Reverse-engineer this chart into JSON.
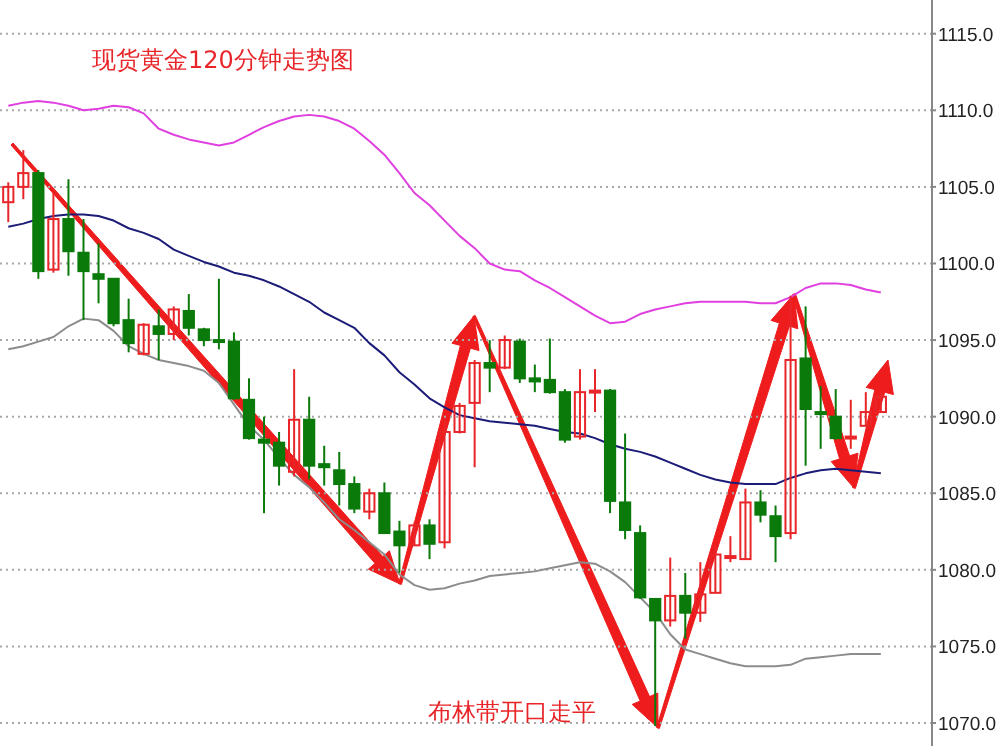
{
  "chart_data": {
    "type": "candlestick",
    "title": "现货黄金120分钟走势图",
    "annotations": [
      "布林带开口走平"
    ],
    "categories": [
      null,
      null,
      null,
      null,
      null,
      null,
      null,
      null,
      null,
      null,
      null,
      null,
      null,
      null,
      null,
      null,
      null,
      null,
      null,
      null,
      null,
      null,
      null,
      null,
      null,
      null,
      null,
      null,
      null,
      null,
      null,
      null,
      null,
      null,
      null,
      null,
      null,
      null,
      null,
      null,
      null,
      null,
      null,
      null,
      null,
      null,
      null,
      null,
      null,
      null,
      null,
      null,
      null,
      null,
      null,
      null,
      null,
      null,
      null
    ],
    "ohlc": [
      [
        1104.0,
        1105.3,
        1102.7,
        1105.0
      ],
      [
        1105.0,
        1107.4,
        1104.2,
        1105.9
      ],
      [
        1105.9,
        1106.1,
        1099.0,
        1099.5
      ],
      [
        1099.6,
        1104.6,
        1099.4,
        1102.9
      ],
      [
        1102.9,
        1105.5,
        1099.2,
        1100.8
      ],
      [
        1100.7,
        1102.9,
        1096.3,
        1099.5
      ],
      [
        1099.3,
        1101.3,
        1097.4,
        1099.0
      ],
      [
        1099.0,
        1099.0,
        1095.9,
        1096.1
      ],
      [
        1096.3,
        1097.7,
        1094.2,
        1094.8
      ],
      [
        1094.1,
        1096.1,
        1094.0,
        1096.0
      ],
      [
        1095.9,
        1097.0,
        1093.7,
        1095.4
      ],
      [
        1095.4,
        1097.2,
        1095.0,
        1097.0
      ],
      [
        1096.9,
        1098.0,
        1095.3,
        1095.8
      ],
      [
        1095.7,
        1095.8,
        1094.6,
        1095.0
      ],
      [
        1095.0,
        1099.0,
        1094.4,
        1094.9
      ],
      [
        1094.9,
        1095.5,
        1091.1,
        1091.2
      ],
      [
        1091.1,
        1092.5,
        1088.5,
        1088.6
      ],
      [
        1088.5,
        1090.0,
        1083.7,
        1088.3
      ],
      [
        1088.3,
        1089.0,
        1085.5,
        1086.8
      ],
      [
        1086.4,
        1093.1,
        1086.1,
        1089.8
      ],
      [
        1089.8,
        1091.3,
        1085.9,
        1086.8
      ],
      [
        1086.9,
        1088.1,
        1085.5,
        1086.7
      ],
      [
        1086.5,
        1087.7,
        1084.2,
        1085.6
      ],
      [
        1085.6,
        1086.1,
        1083.7,
        1084.0
      ],
      [
        1083.8,
        1085.3,
        1083.3,
        1085.0
      ],
      [
        1085.0,
        1085.7,
        1082.4,
        1082.4
      ],
      [
        1082.5,
        1083.2,
        1079.8,
        1081.6
      ],
      [
        1081.6,
        1083.1,
        1081.6,
        1082.9
      ],
      [
        1082.9,
        1083.3,
        1080.7,
        1081.7
      ],
      [
        1081.8,
        1089.8,
        1081.4,
        1089.0
      ],
      [
        1089.0,
        1090.9,
        1088.9,
        1090.7
      ],
      [
        1090.9,
        1093.7,
        1086.7,
        1093.5
      ],
      [
        1093.5,
        1095.0,
        1091.6,
        1093.2
      ],
      [
        1093.2,
        1095.3,
        1093.1,
        1095.0
      ],
      [
        1094.9,
        1095.1,
        1092.2,
        1092.5
      ],
      [
        1092.5,
        1093.4,
        1091.6,
        1092.3
      ],
      [
        1092.4,
        1095.1,
        1091.5,
        1091.6
      ],
      [
        1091.6,
        1091.8,
        1088.3,
        1088.5
      ],
      [
        1088.7,
        1093.1,
        1088.5,
        1091.6
      ],
      [
        1091.6,
        1093.1,
        1090.3,
        1091.7
      ],
      [
        1091.7,
        1091.8,
        1083.7,
        1084.5
      ],
      [
        1084.4,
        1088.9,
        1082.0,
        1082.6
      ],
      [
        1082.4,
        1082.9,
        1078.1,
        1078.2
      ],
      [
        1078.1,
        1078.1,
        1069.8,
        1076.7
      ],
      [
        1076.7,
        1080.8,
        1076.3,
        1078.3
      ],
      [
        1078.3,
        1079.8,
        1075.5,
        1077.2
      ],
      [
        1077.2,
        1080.5,
        1076.6,
        1078.4
      ],
      [
        1078.5,
        1081.6,
        1078.5,
        1081.0
      ],
      [
        1080.8,
        1082.2,
        1080.5,
        1080.9
      ],
      [
        1080.7,
        1085.3,
        1080.7,
        1084.4
      ],
      [
        1084.4,
        1085.2,
        1083.1,
        1083.6
      ],
      [
        1083.5,
        1084.2,
        1080.5,
        1082.2
      ],
      [
        1082.4,
        1097.9,
        1082.0,
        1093.7
      ],
      [
        1093.8,
        1097.2,
        1086.8,
        1090.5
      ],
      [
        1090.3,
        1092.0,
        1087.9,
        1090.2
      ],
      [
        1090.0,
        1091.8,
        1088.5,
        1088.6
      ],
      [
        1088.6,
        1091.1,
        1087.9,
        1088.7
      ],
      [
        1089.4,
        1091.6,
        1089.4,
        1090.3
      ],
      [
        1090.3,
        1091.6,
        1090.3,
        1091.3
      ]
    ],
    "series": [
      {
        "type": "line",
        "color": "#e040e0",
        "values": [
          1110.3,
          1110.5,
          1110.6,
          1110.5,
          1110.3,
          1110.0,
          1110.1,
          1110.3,
          1110.2,
          1109.8,
          1108.8,
          1108.4,
          1108.1,
          1107.9,
          1107.7,
          1107.9,
          1108.4,
          1108.9,
          1109.3,
          1109.6,
          1109.7,
          1109.6,
          1109.3,
          1108.8,
          1108.0,
          1107.1,
          1105.9,
          1104.6,
          1103.8,
          1102.8,
          1101.8,
          1101.0,
          1100.0,
          1099.6,
          1099.5,
          1098.9,
          1098.4,
          1097.8,
          1097.2,
          1096.6,
          1096.1,
          1096.2,
          1096.7,
          1097.0,
          1097.2,
          1097.4,
          1097.5,
          1097.5,
          1097.5,
          1097.5,
          1097.4,
          1097.4,
          1097.8,
          1098.4,
          1098.7,
          1098.7,
          1098.6,
          1098.3,
          1098.1
        ]
      },
      {
        "type": "line",
        "color": "#1c1c78",
        "values": [
          1102.4,
          1102.6,
          1102.9,
          1103.1,
          1103.2,
          1103.2,
          1103.1,
          1102.8,
          1102.3,
          1102.0,
          1101.6,
          1100.9,
          1100.5,
          1100.1,
          1099.8,
          1099.4,
          1099.2,
          1098.9,
          1098.5,
          1098.0,
          1097.5,
          1096.8,
          1096.3,
          1095.8,
          1094.8,
          1094.0,
          1092.9,
          1092.1,
          1091.2,
          1090.6,
          1090.1,
          1089.9,
          1089.7,
          1089.6,
          1089.5,
          1089.4,
          1089.2,
          1089.0,
          1088.9,
          1088.6,
          1088.2,
          1087.9,
          1087.7,
          1087.4,
          1087.0,
          1086.6,
          1086.2,
          1085.9,
          1085.7,
          1085.6,
          1085.6,
          1085.6,
          1086.0,
          1086.3,
          1086.5,
          1086.6,
          1086.5,
          1086.4,
          1086.3
        ]
      },
      {
        "type": "line",
        "color": "#8c8c8c",
        "values": [
          1094.4,
          1094.6,
          1094.9,
          1095.2,
          1095.9,
          1096.4,
          1096.3,
          1095.6,
          1094.6,
          1094.1,
          1093.7,
          1093.5,
          1093.3,
          1093.0,
          1092.2,
          1090.8,
          1089.4,
          1088.5,
          1087.3,
          1086.2,
          1085.4,
          1084.4,
          1083.3,
          1082.6,
          1081.8,
          1081.0,
          1079.7,
          1079.0,
          1078.7,
          1078.8,
          1079.1,
          1079.3,
          1079.6,
          1079.7,
          1079.8,
          1079.9,
          1080.1,
          1080.3,
          1080.5,
          1080.4,
          1079.9,
          1079.2,
          1078.2,
          1077.2,
          1075.8,
          1074.8,
          1074.5,
          1074.2,
          1073.9,
          1073.7,
          1073.7,
          1073.7,
          1073.8,
          1074.2,
          1074.3,
          1074.4,
          1074.5,
          1074.5,
          1074.5
        ]
      }
    ],
    "ylim": [
      1068.5,
      1117.2
    ],
    "yticks": [
      {
        "value": 1070,
        "label": "1070.0"
      },
      {
        "value": 1075,
        "label": "1075.0"
      },
      {
        "value": 1080,
        "label": "1080.0"
      },
      {
        "value": 1085,
        "label": "1085.0"
      },
      {
        "value": 1090,
        "label": "1090.0"
      },
      {
        "value": 1095,
        "label": "1095.0"
      },
      {
        "value": 1100,
        "label": "1100.0"
      },
      {
        "value": 1105,
        "label": "1105.0"
      },
      {
        "value": 1110,
        "label": "1110.0"
      },
      {
        "value": 1115,
        "label": "1115.0"
      }
    ],
    "grid": "y",
    "tick_labels": "y"
  }
}
